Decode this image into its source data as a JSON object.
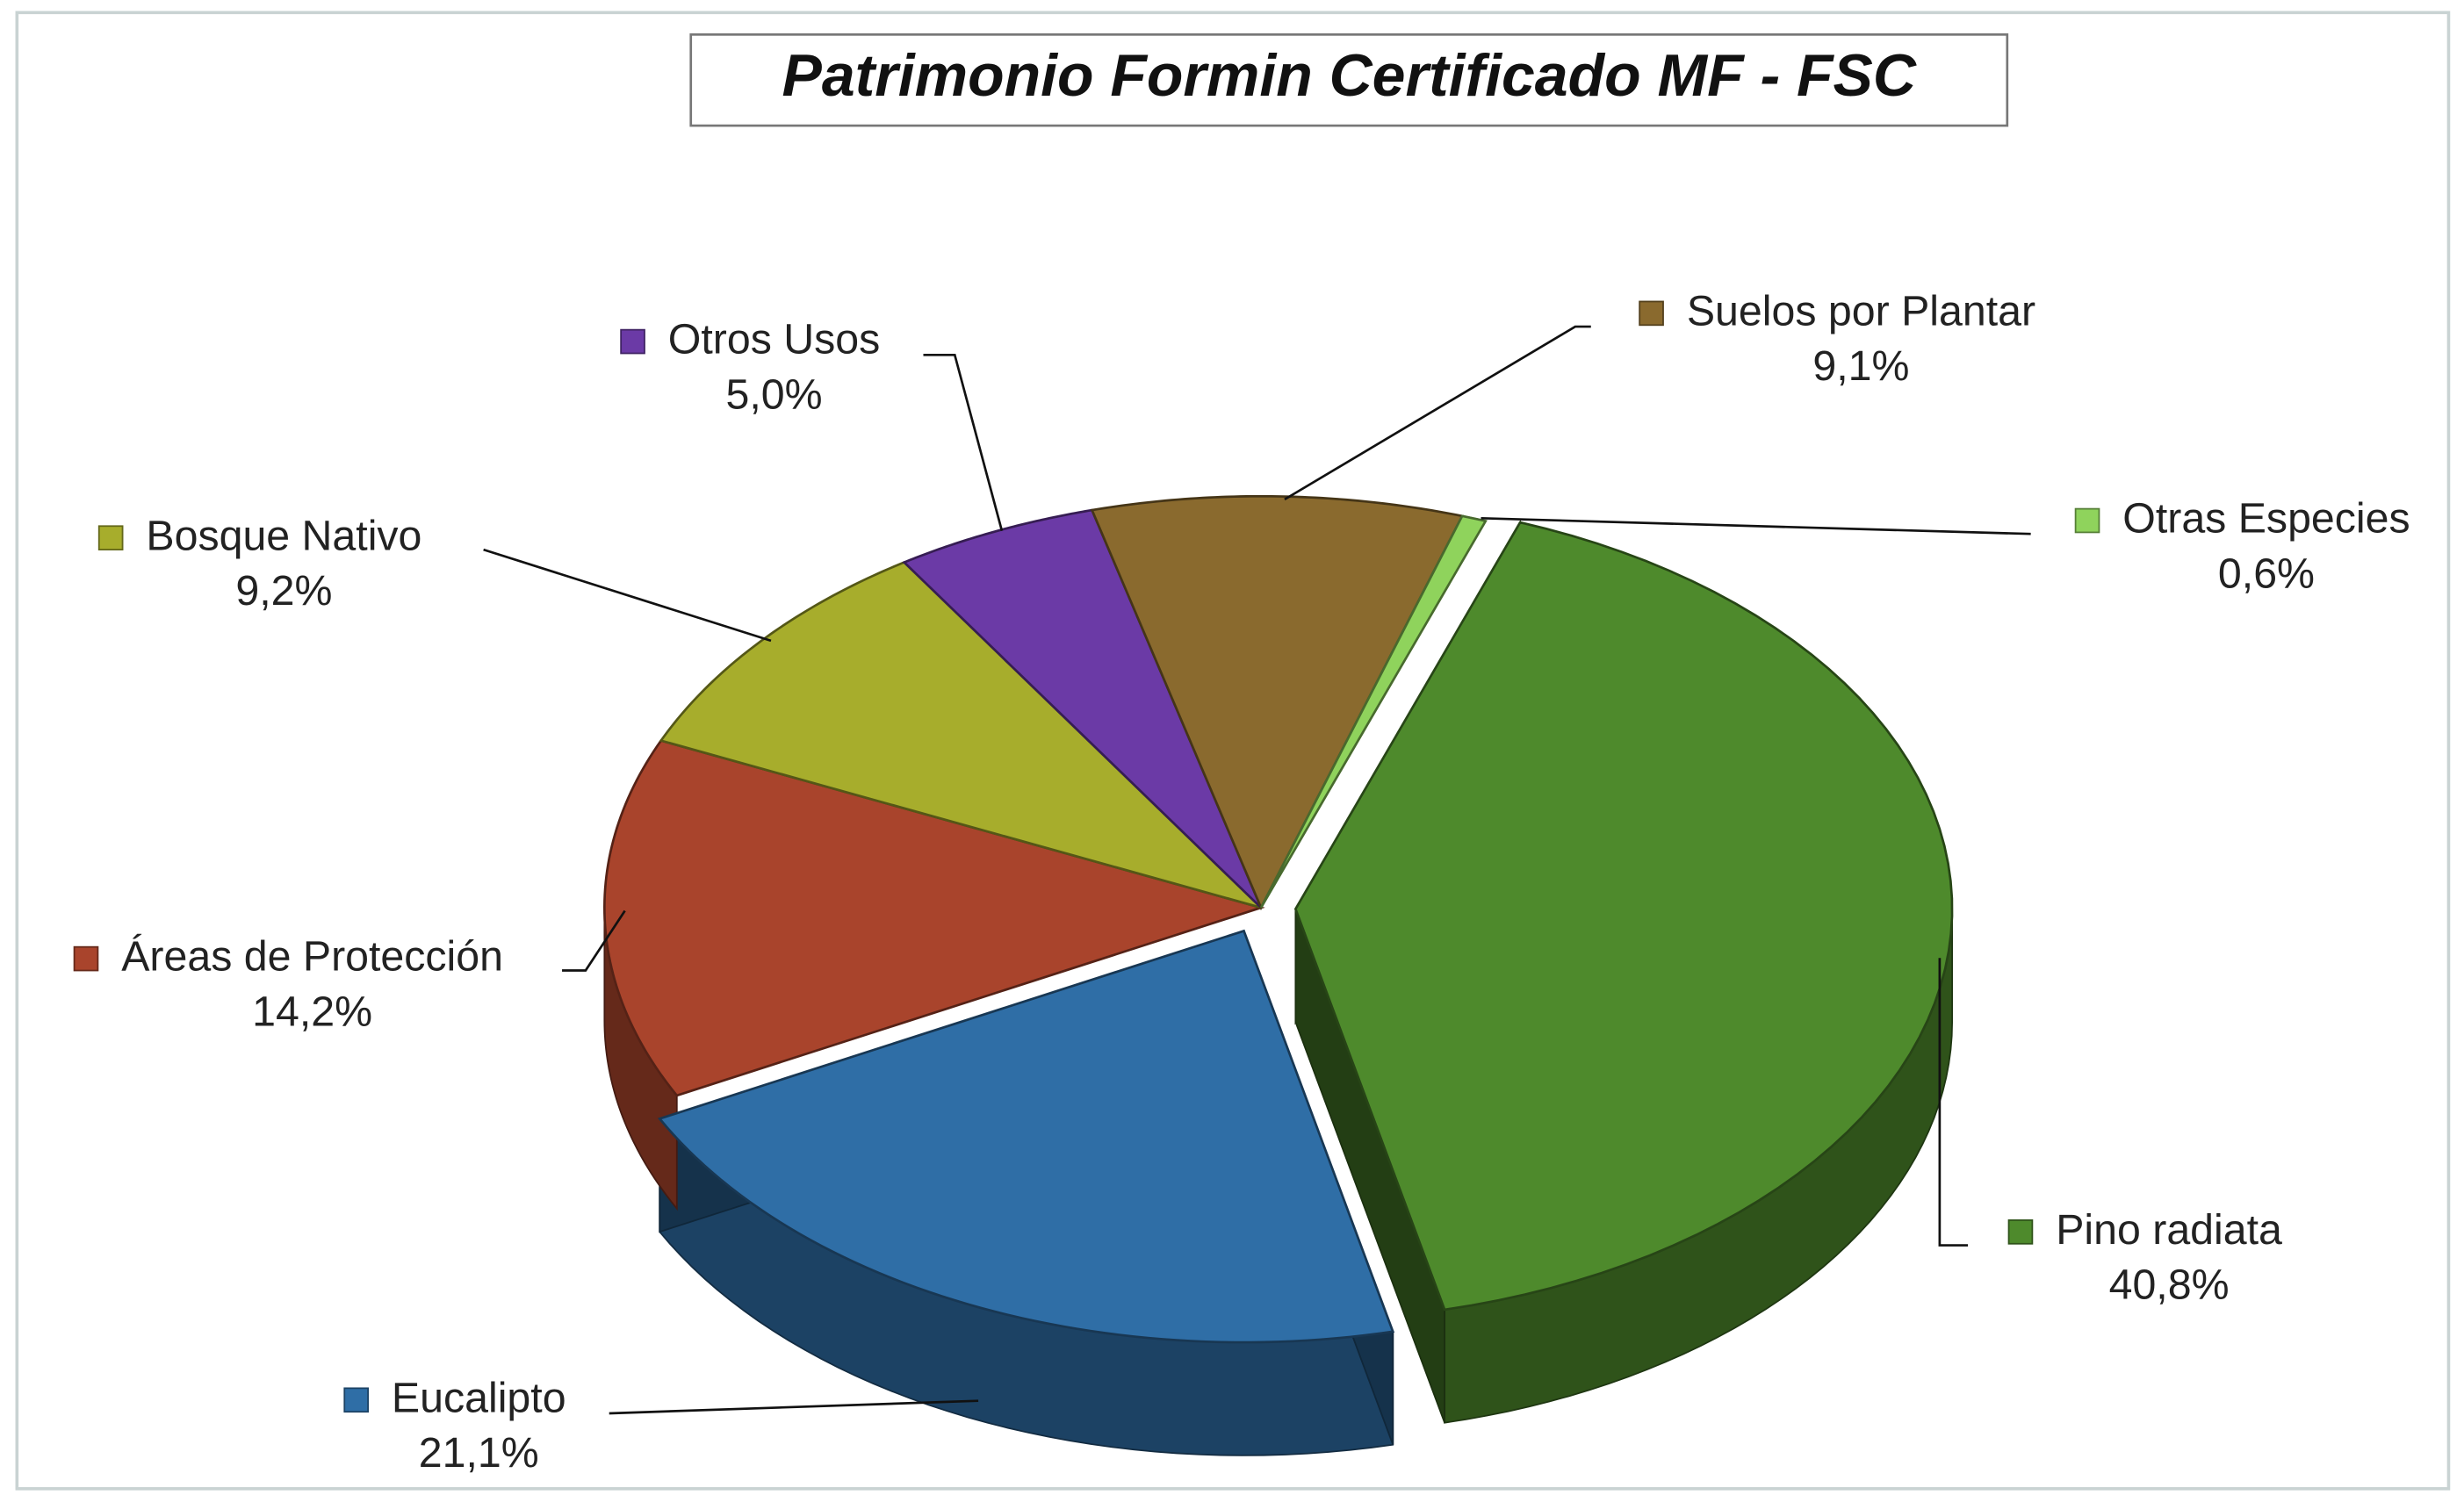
{
  "chart_data": {
    "type": "pie",
    "title": "Patrimonio Formin Certificado MF - FSC",
    "categories": [
      "Pino radiata",
      "Eucalipto",
      "Áreas de Protección",
      "Bosque Nativo",
      "Otros Usos",
      "Suelos por Plantar",
      "Otras Especies"
    ],
    "values": [
      40.8,
      21.1,
      14.2,
      9.2,
      5.0,
      9.1,
      0.6
    ],
    "value_labels": [
      "40,8%",
      "21,1%",
      "14,2%",
      "9,2%",
      "5,0%",
      "9,1%",
      "0,6%"
    ],
    "colors": [
      "#4e8a2c",
      "#2f6ea6",
      "#a9442c",
      "#a7ad2c",
      "#6b3aa6",
      "#8a6a2e",
      "#8fd35c"
    ]
  }
}
